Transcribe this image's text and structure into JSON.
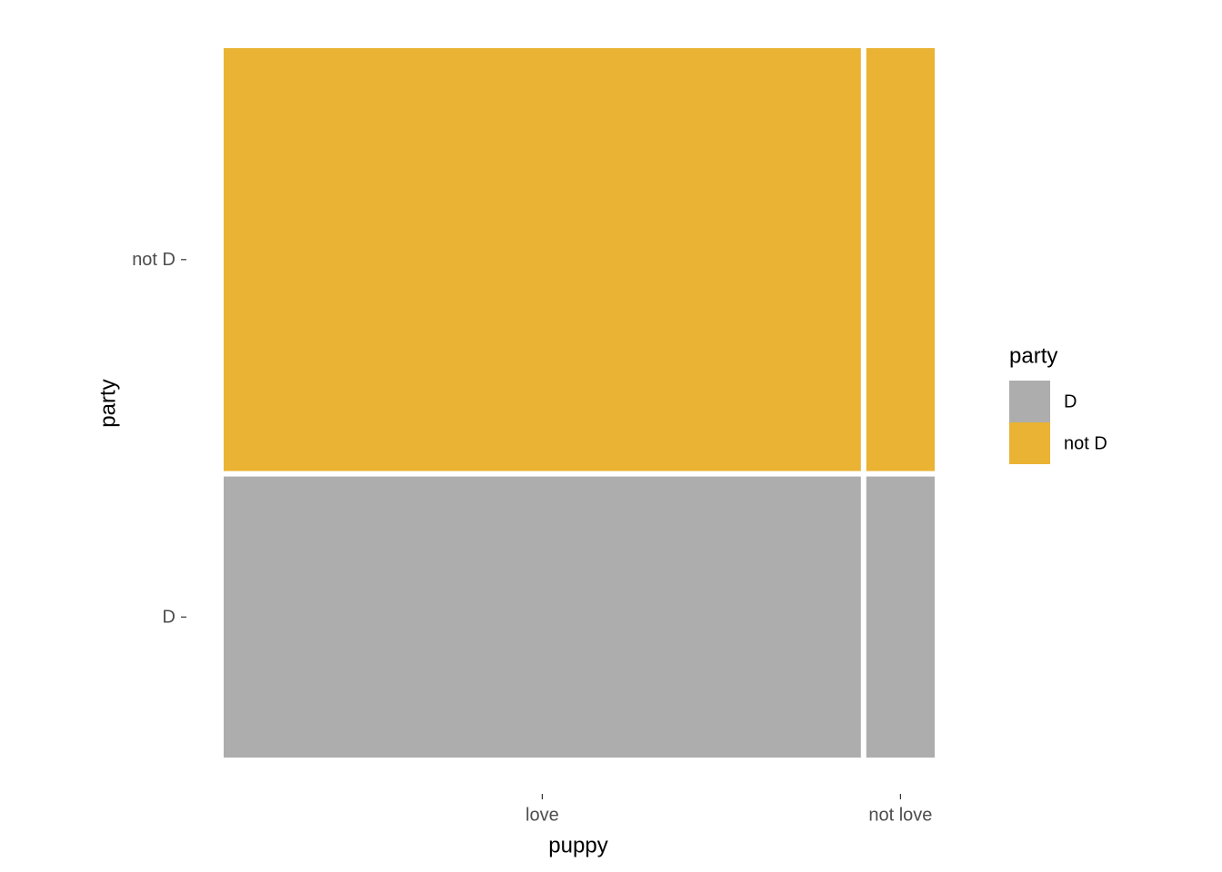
{
  "chart_data": {
    "type": "mosaic",
    "x_label": "puppy",
    "y_label": "party",
    "legend_title": "party",
    "categories": [
      "love",
      "not love"
    ],
    "widths": [
      0.9,
      0.1
    ],
    "series": [
      {
        "name": "D",
        "color": "#adadad",
        "values": [
          0.4,
          0.4
        ]
      },
      {
        "name": "not D",
        "color": "#eab333",
        "values": [
          0.6,
          0.6
        ]
      }
    ]
  }
}
